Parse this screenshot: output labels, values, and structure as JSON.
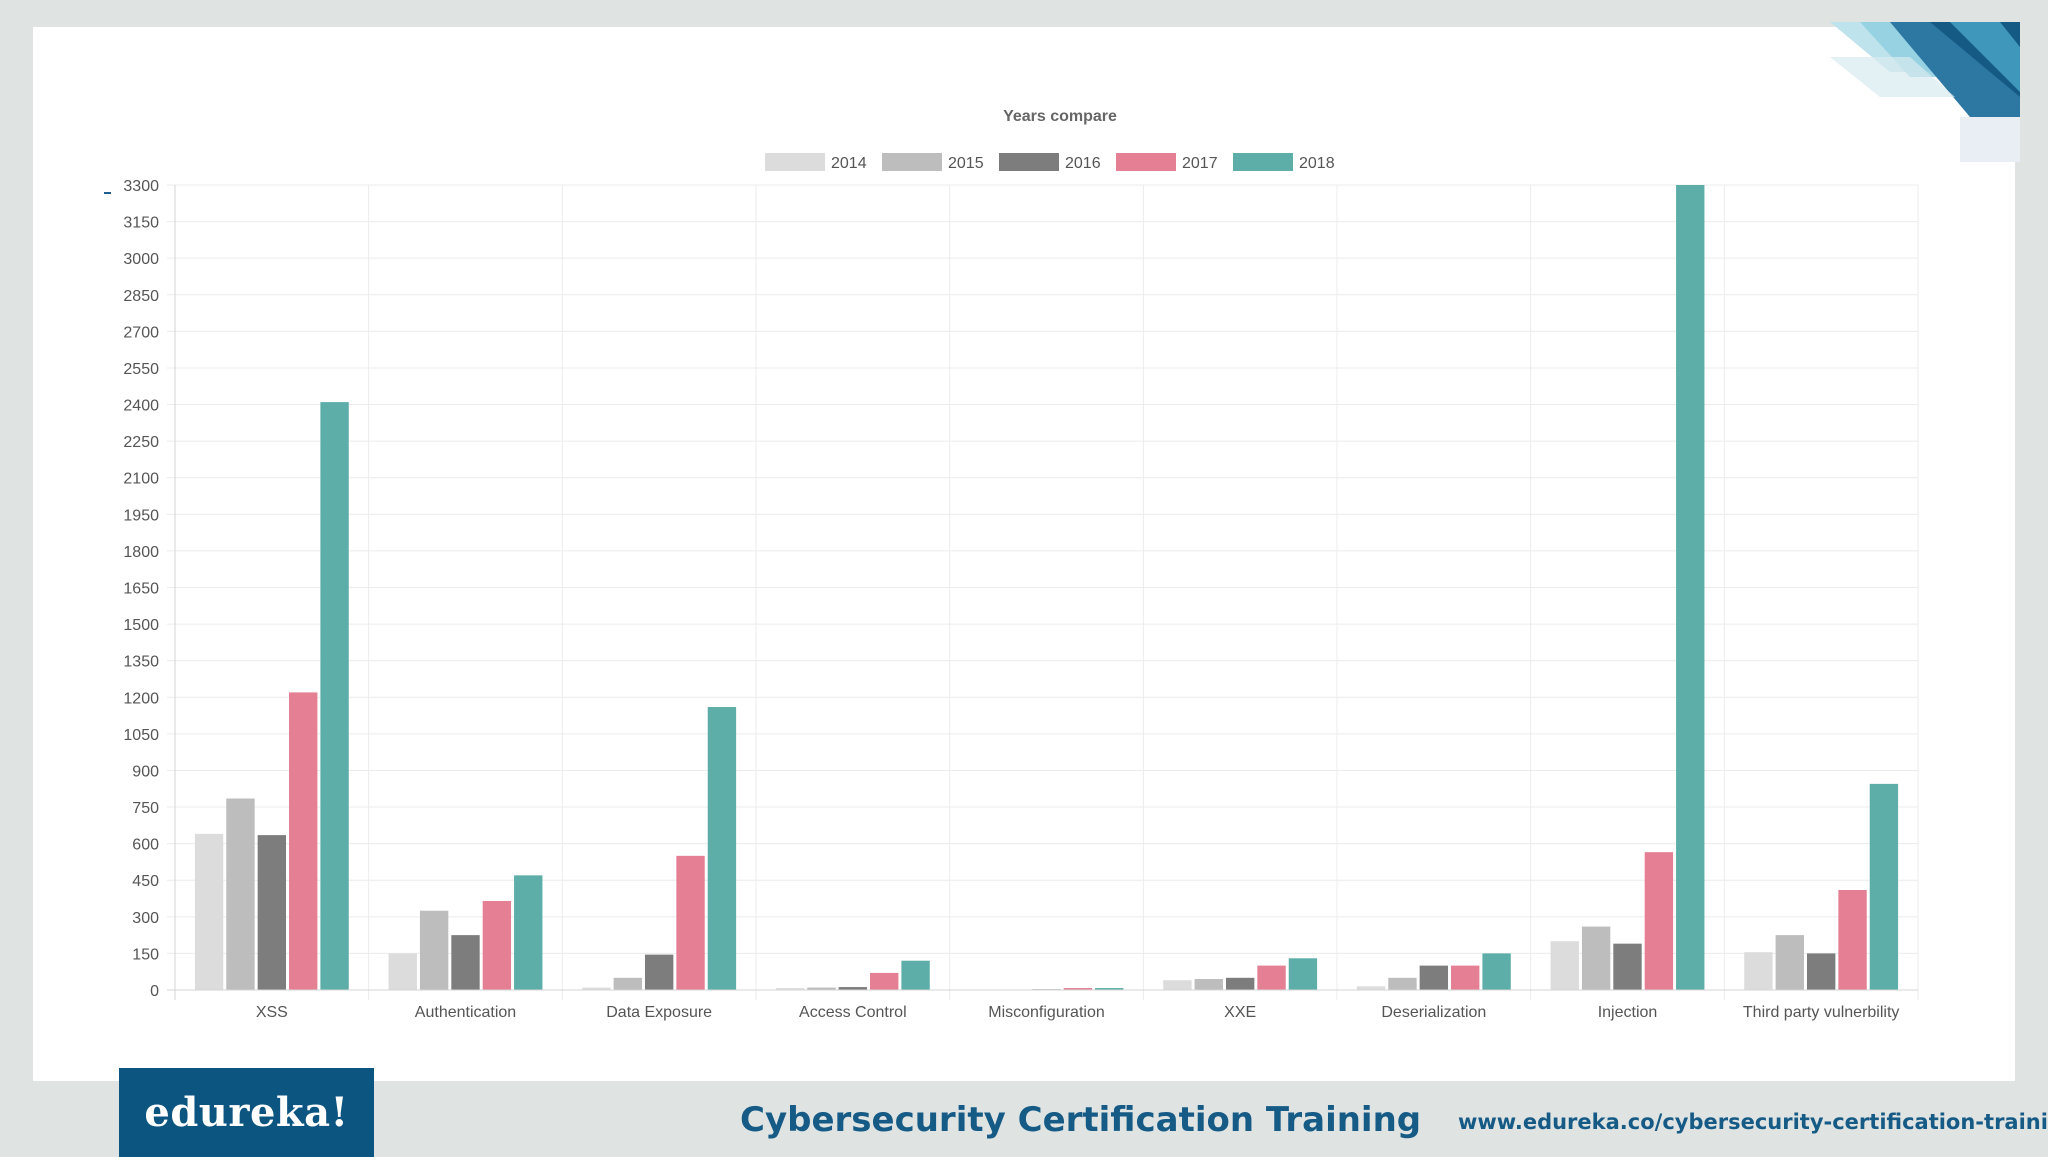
{
  "footer": {
    "logo_text": "edureka!",
    "title": "Cybersecurity Certification Training",
    "url": "www.edureka.co/cybersecurity-certification-training"
  },
  "colors": {
    "accent": "#165a86",
    "logo_bg": "#0c5580"
  },
  "chart_data": {
    "type": "bar",
    "title": "Years compare",
    "xlabel": "",
    "ylabel": "",
    "ylim": [
      0,
      3300
    ],
    "yticks": [
      0,
      150,
      300,
      450,
      600,
      750,
      900,
      1050,
      1200,
      1350,
      1500,
      1650,
      1800,
      1950,
      2100,
      2250,
      2400,
      2550,
      2700,
      2850,
      3000,
      3150,
      3300
    ],
    "grid": true,
    "legend_position": "top",
    "categories": [
      "XSS",
      "Authentication",
      "Data Exposure",
      "Access Control",
      "Misconfiguration",
      "XXE",
      "Deserialization",
      "Injection",
      "Third party vulnerbility"
    ],
    "series": [
      {
        "name": "2014",
        "color": "#dcdcdc",
        "values": [
          640,
          150,
          10,
          8,
          0,
          40,
          15,
          200,
          155
        ]
      },
      {
        "name": "2015",
        "color": "#bdbdbd",
        "values": [
          785,
          325,
          50,
          10,
          2,
          45,
          50,
          260,
          225
        ]
      },
      {
        "name": "2016",
        "color": "#7d7d7d",
        "values": [
          635,
          225,
          145,
          12,
          3,
          50,
          100,
          190,
          150
        ]
      },
      {
        "name": "2017",
        "color": "#e57f94",
        "values": [
          1220,
          365,
          550,
          70,
          8,
          100,
          100,
          565,
          410
        ]
      },
      {
        "name": "2018",
        "color": "#5daea8",
        "values": [
          2410,
          470,
          1160,
          120,
          8,
          130,
          150,
          3300,
          845
        ]
      }
    ]
  }
}
